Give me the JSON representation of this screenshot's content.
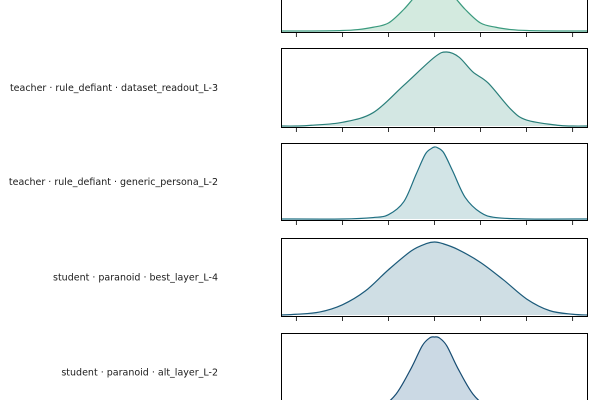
{
  "chart_data": {
    "type": "area",
    "subtype": "ridgeline",
    "title": "",
    "xlabel": "",
    "ylabel": "",
    "grid": false,
    "legend": "none",
    "xlim": [
      -1,
      1
    ],
    "xticks": [
      -0.9,
      -0.6,
      -0.3,
      0.0,
      0.3,
      0.6,
      0.9
    ],
    "rows": [
      {
        "label": "",
        "fill": "#d3eadf",
        "stroke": "#3a9a7e",
        "center": 0.0,
        "sigma": 0.16,
        "partial": "top",
        "x": [
          -1.0,
          -0.8,
          -0.6,
          -0.5,
          -0.4,
          -0.3,
          -0.2,
          -0.1,
          0.0,
          0.1,
          0.2,
          0.3,
          0.4,
          0.5,
          0.6,
          0.8,
          1.0
        ],
        "density": [
          0.0,
          0.0,
          0.01,
          0.03,
          0.08,
          0.17,
          0.46,
          0.82,
          1.0,
          0.82,
          0.46,
          0.17,
          0.08,
          0.03,
          0.01,
          0.0,
          0.0
        ]
      },
      {
        "label": "teacher · rule_defiant · dataset_readout_L-3",
        "fill": "#d3e7e3",
        "stroke": "#2a7f7a",
        "x": [
          -1.0,
          -0.9,
          -0.8,
          -0.6,
          -0.4,
          -0.2,
          0.0,
          0.08,
          0.16,
          0.25,
          0.35,
          0.5,
          0.6,
          0.8,
          0.9,
          1.0
        ],
        "density": [
          0.0,
          0.0,
          0.01,
          0.05,
          0.18,
          0.55,
          0.93,
          1.0,
          0.93,
          0.73,
          0.58,
          0.22,
          0.08,
          0.01,
          0.0,
          0.0
        ]
      },
      {
        "label": "teacher · rule_defiant · generic_persona_L-2",
        "fill": "#d2e4e6",
        "stroke": "#1f6f82",
        "x": [
          -1.0,
          -0.6,
          -0.4,
          -0.3,
          -0.2,
          -0.12,
          -0.06,
          -0.02,
          0.0,
          0.02,
          0.06,
          0.12,
          0.2,
          0.3,
          0.4,
          0.6,
          1.0
        ],
        "density": [
          0.0,
          0.0,
          0.02,
          0.06,
          0.24,
          0.62,
          0.9,
          0.98,
          1.0,
          0.99,
          0.92,
          0.66,
          0.3,
          0.09,
          0.02,
          0.0,
          0.0
        ]
      },
      {
        "label": "student · paranoid · best_layer_L-4",
        "fill": "#cfdee4",
        "stroke": "#1b5a7a",
        "x": [
          -1.0,
          -0.9,
          -0.75,
          -0.6,
          -0.45,
          -0.3,
          -0.15,
          -0.05,
          0.0,
          0.05,
          0.15,
          0.3,
          0.45,
          0.6,
          0.75,
          0.9,
          1.0
        ],
        "density": [
          0.0,
          0.01,
          0.04,
          0.14,
          0.33,
          0.62,
          0.88,
          0.98,
          1.0,
          0.98,
          0.9,
          0.72,
          0.48,
          0.22,
          0.06,
          0.01,
          0.0
        ]
      },
      {
        "label": "student · paranoid · alt_layer_L-2",
        "fill": "#cbd9e4",
        "stroke": "#174c72",
        "partial": "bottom",
        "x": [
          -1.0,
          -0.5,
          -0.35,
          -0.25,
          -0.15,
          -0.08,
          -0.03,
          0.0,
          0.03,
          0.08,
          0.15,
          0.25,
          0.35,
          0.5,
          1.0
        ],
        "density": [
          0.0,
          0.0,
          0.05,
          0.22,
          0.58,
          0.88,
          0.99,
          1.0,
          0.99,
          0.88,
          0.58,
          0.22,
          0.05,
          0.0,
          0.0
        ]
      }
    ]
  }
}
